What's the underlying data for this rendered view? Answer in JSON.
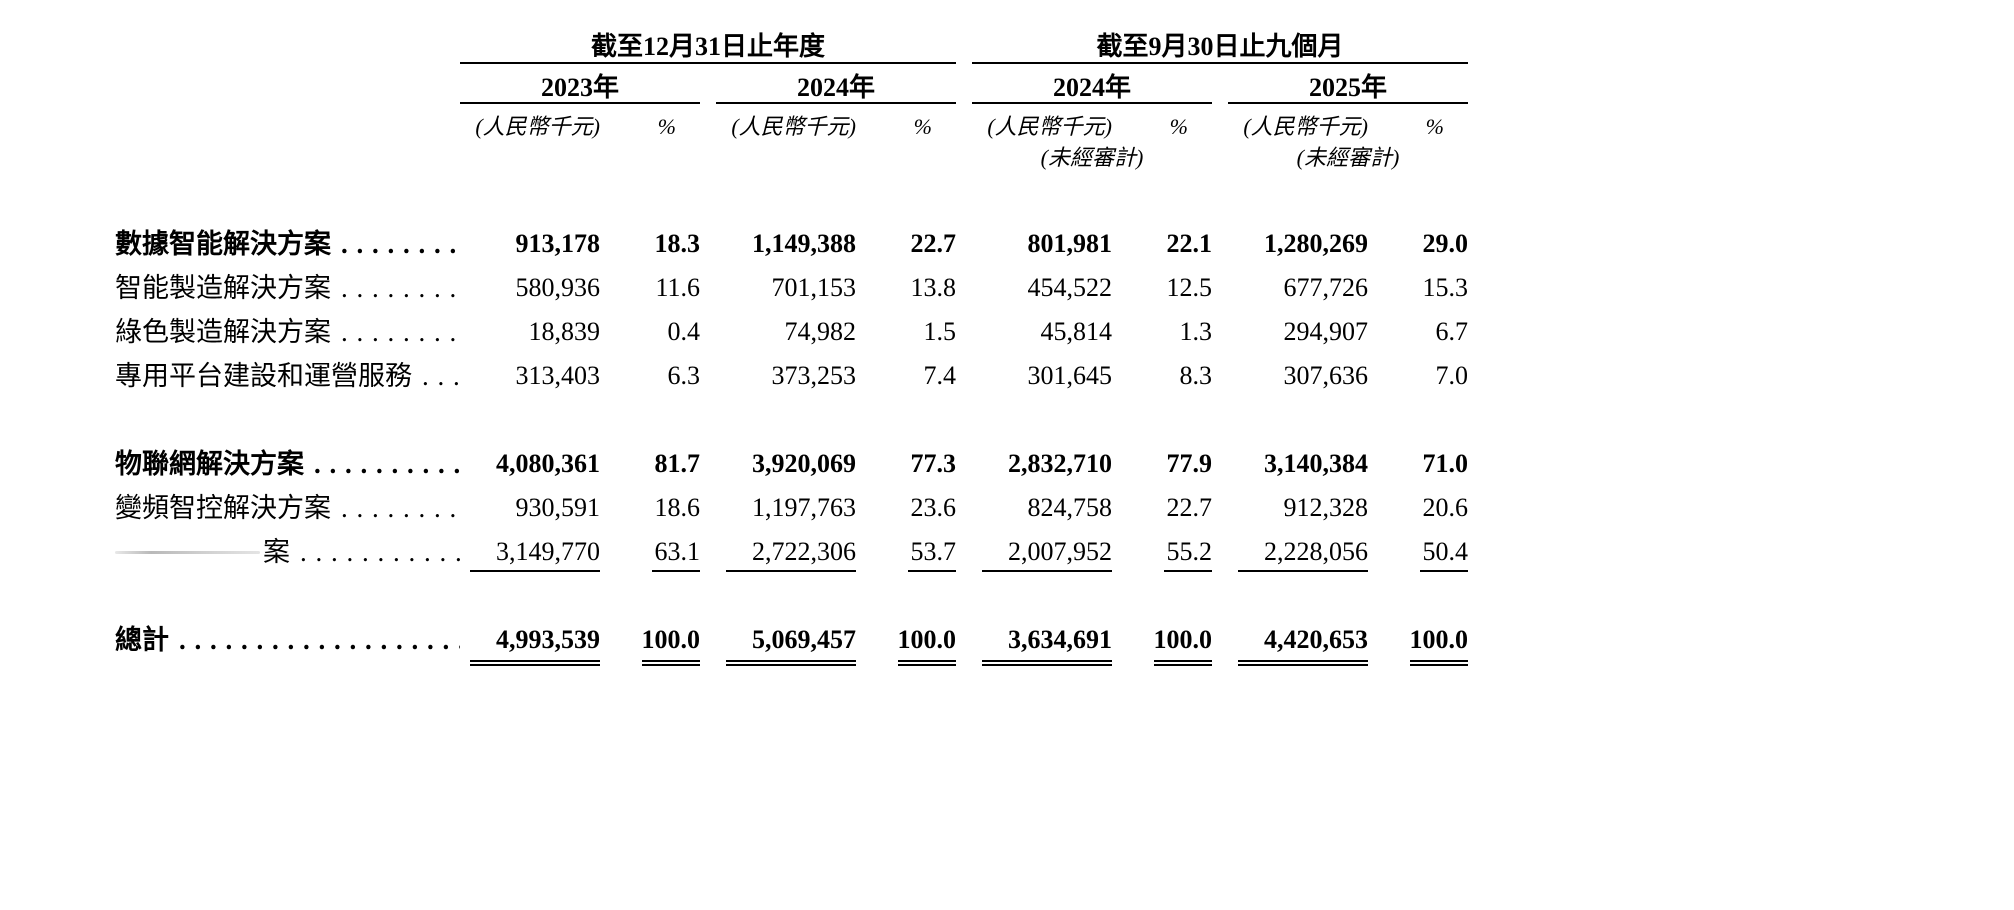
{
  "document": {
    "header": {
      "period_groups": [
        {
          "title": "截至12月31日止年度"
        },
        {
          "title": "截至9月30日止九個月"
        }
      ],
      "years": [
        {
          "label": "2023年",
          "unit": "(人民幣千元)",
          "pct": "%",
          "note": ""
        },
        {
          "label": "2024年",
          "unit": "(人民幣千元)",
          "pct": "%",
          "note": ""
        },
        {
          "label": "2024年",
          "unit": "(人民幣千元)",
          "pct": "%",
          "note": "(未經審計)"
        },
        {
          "label": "2025年",
          "unit": "(人民幣千元)",
          "pct": "%",
          "note": "(未經審計)"
        }
      ]
    },
    "leader_dots": ". . . . . . . . . . . . . . . . . . . . . . . . . . . . . . . . . . . . . . . .",
    "rows": [
      {
        "label": "數據智能解決方案",
        "bold": true,
        "values": [
          "913,178",
          "18.3",
          "1,149,388",
          "22.7",
          "801,981",
          "22.1",
          "1,280,269",
          "29.0"
        ]
      },
      {
        "label": "智能製造解決方案",
        "values": [
          "580,936",
          "11.6",
          "701,153",
          "13.8",
          "454,522",
          "12.5",
          "677,726",
          "15.3"
        ]
      },
      {
        "label": "綠色製造解決方案",
        "values": [
          "18,839",
          "0.4",
          "74,982",
          "1.5",
          "45,814",
          "1.3",
          "294,907",
          "6.7"
        ]
      },
      {
        "label": "專用平台建設和運營服務",
        "gap_after": true,
        "values": [
          "313,403",
          "6.3",
          "373,253",
          "7.4",
          "301,645",
          "8.3",
          "307,636",
          "7.0"
        ]
      },
      {
        "label": "物聯網解決方案",
        "bold": true,
        "values": [
          "4,080,361",
          "81.7",
          "3,920,069",
          "77.3",
          "2,832,710",
          "77.9",
          "3,140,384",
          "71.0"
        ]
      },
      {
        "label": "變頻智控解決方案",
        "values": [
          "930,591",
          "18.6",
          "1,197,763",
          "23.6",
          "824,758",
          "22.7",
          "912,328",
          "20.6"
        ]
      },
      {
        "label": "案",
        "redacted": true,
        "rule": true,
        "gap_after": true,
        "values": [
          "3,149,770",
          "63.1",
          "2,722,306",
          "53.7",
          "2,007,952",
          "55.2",
          "2,228,056",
          "50.4"
        ]
      },
      {
        "label": "總計",
        "bold": true,
        "total": true,
        "values": [
          "4,993,539",
          "100.0",
          "5,069,457",
          "100.0",
          "3,634,691",
          "100.0",
          "4,420,653",
          "100.0"
        ]
      }
    ]
  }
}
